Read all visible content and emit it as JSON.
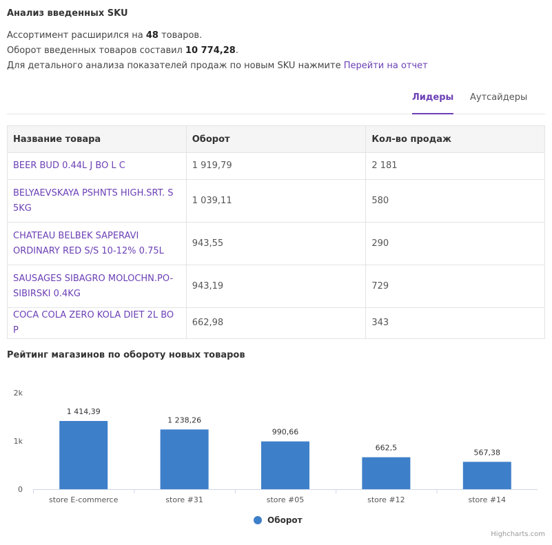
{
  "header": {
    "title": "Анализ введенных SKU"
  },
  "summary": {
    "line1_prefix": "Ассортимент расширился на ",
    "line1_value": "48",
    "line1_suffix": " товаров.",
    "line2_prefix": "Оборот введенных товаров составил ",
    "line2_value": "10 774,28",
    "line2_suffix": ".",
    "line3_prefix": "Для детального анализа показателей продаж по новым SKU нажмите ",
    "line3_link": "Перейти на отчет"
  },
  "tabs": [
    {
      "label": "Лидеры",
      "active": true
    },
    {
      "label": "Аутсайдеры",
      "active": false
    }
  ],
  "table": {
    "headers": [
      "Название товара",
      "Оборот",
      "Кол-во продаж"
    ],
    "rows": [
      {
        "name": "BEER BUD 0.44L J BO L C",
        "turnover": "1 919,79",
        "qty": "2 181"
      },
      {
        "name": "BELYAEVSKAYA PSHNTS HIGH.SRT. S 5KG",
        "turnover": "1 039,11",
        "qty": "580"
      },
      {
        "name": "CHATEAU BELBEK SAPERAVI ORDINARY RED S/S 10-12% 0.75L",
        "turnover": "943,55",
        "qty": "290"
      },
      {
        "name": "SAUSAGES SIBAGRO MOLOCHN.PO-SIBIRSKI 0.4KG",
        "turnover": "943,19",
        "qty": "729"
      },
      {
        "name": "COCA COLA ZERO KOLA DIET 2L BO P",
        "turnover": "662,98",
        "qty": "343"
      }
    ]
  },
  "chart_section": {
    "title": "Рейтинг магазинов по обороту новых товаров"
  },
  "chart_data": {
    "type": "bar",
    "categories": [
      "store E-commerce",
      "store #31",
      "store #05",
      "store #12",
      "store #14"
    ],
    "series": [
      {
        "name": "Оборот",
        "values": [
          1414.39,
          1238.26,
          990.66,
          662.5,
          567.38
        ],
        "labels": [
          "1 414,39",
          "1 238,26",
          "990,66",
          "662,5",
          "567,38"
        ],
        "color": "#3e7fc9"
      }
    ],
    "yticks": [
      0,
      1000,
      2000
    ],
    "ytick_labels": [
      "0",
      "1k",
      "2k"
    ],
    "ylim": [
      0,
      2000
    ],
    "grid": false,
    "legend": "bottom-center",
    "credits": "Highcharts.com"
  },
  "colors": {
    "accent": "#6b3fb5",
    "bar": "#3e7fc9"
  }
}
